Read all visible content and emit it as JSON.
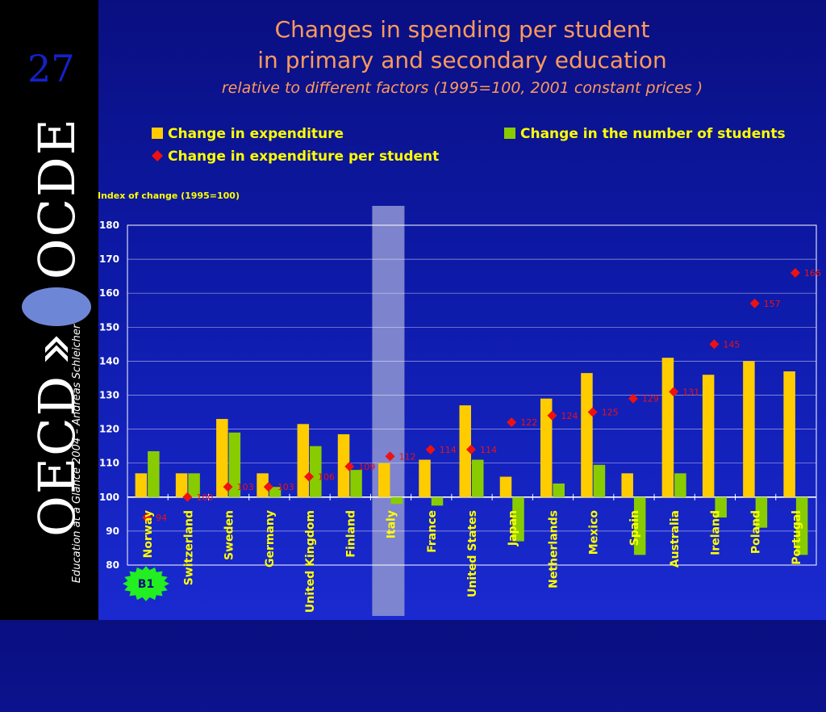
{
  "page_number": "27",
  "logo": {
    "left_word": "OECD",
    "right_word": "OCDE"
  },
  "footer": "Education at a Glance 2004 – Andreas Schleicher",
  "badge": "B1",
  "colors": {
    "expenditure": "#ffcc00",
    "students": "#88cc00",
    "per_student": "#ee1111",
    "highlight": "#8a8fd0",
    "title": "#ff9a5a",
    "legend_text": "#ffff00"
  },
  "chart_data": {
    "type": "bar",
    "title": "Changes in spending per student",
    "title_line2": "in primary and secondary education",
    "subtitle": "relative to different factors (1995=100, 2001 constant prices )",
    "ylabel": "Index of change (1995=100)",
    "ylim": [
      80,
      180
    ],
    "yticks": [
      "80",
      "90",
      "100",
      "110",
      "120",
      "130",
      "140",
      "150",
      "160",
      "170",
      "180"
    ],
    "baseline": 100,
    "grid": true,
    "legend_position": "top",
    "highlight_category": "Italy",
    "categories": [
      "Norway",
      "Switzerland",
      "Sweden",
      "Germany",
      "United Kingdom",
      "Finland",
      "Italy",
      "France",
      "United States",
      "Japan",
      "Netherlands",
      "Mexico",
      "Spain",
      "Australia",
      "Ireland",
      "Poland",
      "Portugal"
    ],
    "series": [
      {
        "name": "Change in expenditure",
        "kind": "bar",
        "values": [
          107,
          107,
          123,
          107,
          121.5,
          118.5,
          110,
          111,
          127,
          106,
          129,
          136.5,
          107,
          141,
          136,
          140,
          137
        ]
      },
      {
        "name": "Change in the number of students",
        "kind": "bar",
        "values": [
          113.5,
          107,
          119,
          103,
          115,
          108,
          98,
          97.5,
          111,
          87,
          104,
          109.5,
          83,
          107,
          94,
          91,
          83
        ]
      },
      {
        "name": "Change in expenditure per student",
        "kind": "marker",
        "values": [
          94,
          100,
          103,
          103,
          106,
          109,
          112,
          114,
          114,
          122,
          124,
          125,
          129,
          131,
          145,
          157,
          166
        ],
        "labels": [
          "94",
          "100",
          "103",
          "103",
          "106",
          "109",
          "112",
          "114",
          "114",
          "122",
          "124",
          "125",
          "129",
          "131",
          "145",
          "157",
          "166"
        ]
      }
    ]
  }
}
